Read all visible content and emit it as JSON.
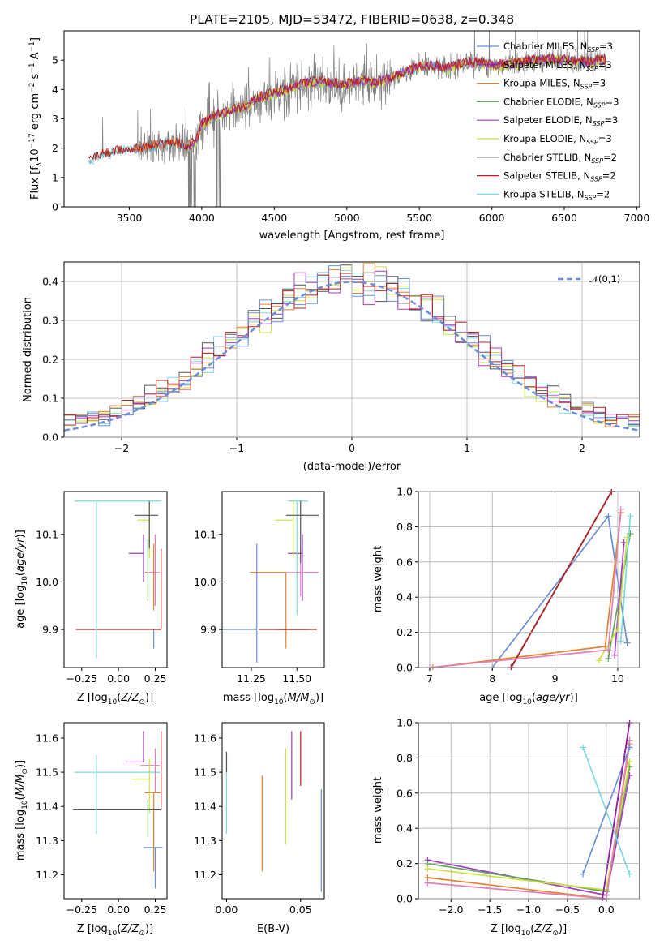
{
  "figure_title": "PLATE=2105, MJD=53472, FIBERID=0638, z=0.348",
  "colors": {
    "Chabrier MILES": "#6b8fd6",
    "Salpeter MILES": "#8b1fa6",
    "Kroupa MILES": "#e5822f",
    "Chabrier ELODIE": "#5ea25e",
    "Salpeter ELODIE": "#a23bc0",
    "Kroupa ELODIE": "#cfe040",
    "Chabrier STELIB": "#555555",
    "Salpeter STELIB": "#b22222",
    "Kroupa STELIB": "#7fd9e0",
    "spectrum": "#808080",
    "pink": "#e07fb8"
  },
  "chart_data": [
    {
      "id": "spectrum",
      "type": "line",
      "xlabel": "wavelength [Angstrom, rest frame]",
      "ylabel": "Flux [f_λ 10^-17 erg cm^-2 s^-1 A^-1]",
      "xlim": [
        3050,
        7020
      ],
      "ylim": [
        0,
        6
      ],
      "xticks": [
        3500,
        4000,
        4500,
        5000,
        5500,
        6000,
        6500,
        7000
      ],
      "yticks": [
        0,
        1,
        2,
        3,
        4,
        5
      ],
      "legend_position": "upper-right",
      "legend": [
        "Chabrier MILES, N_SSP=3",
        "Salpeter MILES, N_SSP=3",
        "Kroupa MILES, N_SSP=3",
        "Chabrier ELODIE, N_SSP=3",
        "Salpeter ELODIE, N_SSP=3",
        "Kroupa ELODIE, N_SSP=3",
        "Chabrier STELIB, N_SSP=2",
        "Salpeter STELIB, N_SSP=2",
        "Kroupa STELIB, N_SSP=2"
      ],
      "continuum_points": [
        [
          3220,
          1.55
        ],
        [
          3300,
          1.75
        ],
        [
          3400,
          1.85
        ],
        [
          3500,
          1.95
        ],
        [
          3600,
          2.0
        ],
        [
          3700,
          2.1
        ],
        [
          3800,
          2.2
        ],
        [
          3900,
          2.05
        ],
        [
          3960,
          2.2
        ],
        [
          4000,
          2.8
        ],
        [
          4100,
          3.1
        ],
        [
          4200,
          3.3
        ],
        [
          4300,
          3.4
        ],
        [
          4400,
          3.7
        ],
        [
          4500,
          3.85
        ],
        [
          4600,
          4.0
        ],
        [
          4700,
          4.2
        ],
        [
          4800,
          4.25
        ],
        [
          4900,
          4.2
        ],
        [
          5000,
          4.15
        ],
        [
          5100,
          4.3
        ],
        [
          5200,
          4.2
        ],
        [
          5300,
          4.35
        ],
        [
          5400,
          4.6
        ],
        [
          5500,
          4.75
        ],
        [
          5600,
          4.8
        ],
        [
          5700,
          4.7
        ],
        [
          5800,
          4.9
        ],
        [
          5900,
          4.9
        ],
        [
          6000,
          4.8
        ],
        [
          6100,
          4.85
        ],
        [
          6200,
          4.9
        ],
        [
          6300,
          5.0
        ],
        [
          6400,
          5.0
        ],
        [
          6500,
          5.0
        ],
        [
          6600,
          4.9
        ],
        [
          6700,
          4.95
        ],
        [
          6790,
          5.0
        ]
      ]
    },
    {
      "id": "residuals",
      "type": "histogram",
      "xlabel": "(data-model)/error",
      "ylabel": "Normed distribution",
      "xlim": [
        -2.5,
        2.5
      ],
      "ylim": [
        0,
        0.45
      ],
      "xticks": [
        -2,
        -1,
        0,
        1,
        2
      ],
      "yticks": [
        0.0,
        0.1,
        0.2,
        0.3,
        0.4
      ],
      "grid": true,
      "legend_position": "upper-right",
      "legend": [
        "𝒩(0,1)"
      ],
      "reference_curve": "normal(0,1)",
      "bin_width": 0.1
    },
    {
      "id": "age_vs_Z",
      "type": "errorbar",
      "xlabel": "Z [log10(Z/Z⊙)]",
      "ylabel": "age [log10(age/yr)]",
      "xlim": [
        -0.37,
        0.33
      ],
      "ylim": [
        9.82,
        10.19
      ],
      "xticks": [
        -0.25,
        0.0,
        0.25
      ],
      "yticks": [
        9.9,
        10.0,
        10.1
      ],
      "points": [
        {
          "model": "Chabrier MILES",
          "x": 0.24,
          "xerr": [
            0.0,
            0.0
          ],
          "y": 9.9,
          "yerr": [
            0.04,
            0.0
          ]
        },
        {
          "model": "Kroupa MILES",
          "x": 0.24,
          "xerr": [
            0.06,
            0.02
          ],
          "y": 10.02,
          "yerr": [
            0.08,
            0.06
          ]
        },
        {
          "model": "Chabrier ELODIE",
          "x": 0.2,
          "xerr": [
            0.0,
            0.0
          ],
          "y": 10.03,
          "yerr": [
            0.07,
            0.06
          ]
        },
        {
          "model": "Salpeter ELODIE",
          "x": 0.17,
          "xerr": [
            0.1,
            0.0
          ],
          "y": 10.06,
          "yerr": [
            0.06,
            0.04
          ]
        },
        {
          "model": "Kroupa ELODIE",
          "x": 0.21,
          "xerr": [
            0.08,
            0.0
          ],
          "y": 10.13,
          "yerr": [
            0.08,
            0.04
          ]
        },
        {
          "model": "Chabrier STELIB",
          "x": 0.21,
          "xerr": [
            0.1,
            0.06
          ],
          "y": 10.14,
          "yerr": [
            0.07,
            0.03
          ]
        },
        {
          "model": "Salpeter STELIB",
          "x": 0.29,
          "xerr": [
            0.58,
            0.0
          ],
          "y": 9.9,
          "yerr": [
            0.0,
            0.17
          ]
        },
        {
          "model": "Kroupa STELIB",
          "x": -0.15,
          "xerr": [
            0.15,
            0.44
          ],
          "y": 10.17,
          "yerr": [
            0.33,
            0.0
          ]
        },
        {
          "model": "pink",
          "x": 0.25,
          "xerr": [
            0.06,
            0.03
          ],
          "y": 10.02,
          "yerr": [
            0.07,
            0.08
          ]
        }
      ]
    },
    {
      "id": "age_vs_mass",
      "type": "errorbar",
      "xlabel": "mass [log10(M/M⊙)]",
      "ylabel": "",
      "xlim": [
        11.09,
        11.65
      ],
      "ylim": [
        9.82,
        10.19
      ],
      "xticks": [
        11.25,
        11.5
      ],
      "yticks": [
        9.9,
        10.0,
        10.1
      ],
      "points": [
        {
          "model": "Chabrier MILES",
          "x": 11.28,
          "xerr": [
            0.2,
            0.0
          ],
          "y": 9.9,
          "yerr": [
            0.07,
            0.18
          ]
        },
        {
          "model": "Kroupa MILES",
          "x": 11.44,
          "xerr": [
            0.2,
            0.0
          ],
          "y": 10.02,
          "yerr": [
            0.16,
            0.0
          ]
        },
        {
          "model": "Salpeter ELODIE",
          "x": 11.53,
          "xerr": [
            0.08,
            0.0
          ],
          "y": 10.06,
          "yerr": [
            0.1,
            0.04
          ]
        },
        {
          "model": "Kroupa ELODIE",
          "x": 11.48,
          "xerr": [
            0.1,
            0.0
          ],
          "y": 10.13,
          "yerr": [
            0.08,
            0.04
          ]
        },
        {
          "model": "Chabrier STELIB",
          "x": 11.39,
          "xerr": [
            0.0,
            0.18
          ],
          "y": 9.9,
          "yerr": [
            0.0,
            0.0
          ]
        },
        {
          "model": "Salpeter STELIB",
          "x": 11.39,
          "xerr": [
            0.1,
            0.22
          ],
          "y": 9.9,
          "yerr": [
            0.0,
            0.0
          ]
        },
        {
          "model": "Kroupa STELIB",
          "x": 11.5,
          "xerr": [
            0.05,
            0.06
          ],
          "y": 10.17,
          "yerr": [
            0.24,
            0.0
          ]
        },
        {
          "model": "pink",
          "x": 11.52,
          "xerr": [
            0.08,
            0.1
          ],
          "y": 10.02,
          "yerr": [
            0.05,
            0.05
          ]
        },
        {
          "model": "Chabrier STELIB",
          "x": 11.52,
          "xerr": [
            0.08,
            0.1
          ],
          "y": 10.14,
          "yerr": [
            0.1,
            0.03
          ]
        }
      ]
    },
    {
      "id": "massweight_vs_age",
      "type": "line",
      "xlabel": "age [log10(age/yr)]",
      "ylabel": "mass weight",
      "xlim": [
        6.82,
        10.35
      ],
      "ylim": [
        0,
        1
      ],
      "xticks": [
        7,
        8,
        9,
        10
      ],
      "yticks": [
        0.0,
        0.2,
        0.4,
        0.6,
        0.8,
        1.0
      ],
      "grid": true,
      "series": [
        {
          "model": "Chabrier MILES",
          "points": [
            [
              8.0,
              0.0
            ],
            [
              9.85,
              0.86
            ],
            [
              10.15,
              0.14
            ]
          ]
        },
        {
          "model": "Salpeter MILES",
          "points": [
            [
              8.3,
              0.0
            ],
            [
              9.9,
              1.0
            ]
          ]
        },
        {
          "model": "Kroupa MILES",
          "points": [
            [
              7.05,
              0.0
            ],
            [
              9.8,
              0.12
            ],
            [
              10.05,
              0.88
            ]
          ]
        },
        {
          "model": "Chabrier ELODIE",
          "points": [
            [
              9.85,
              0.05
            ],
            [
              10.2,
              0.76
            ]
          ]
        },
        {
          "model": "Salpeter ELODIE",
          "points": [
            [
              9.95,
              0.07
            ],
            [
              10.1,
              0.71
            ]
          ]
        },
        {
          "model": "Kroupa ELODIE",
          "points": [
            [
              9.7,
              0.04
            ],
            [
              10.0,
              0.22
            ],
            [
              10.15,
              0.74
            ]
          ]
        },
        {
          "model": "Chabrier STELIB",
          "points": [
            [
              8.3,
              0.0
            ],
            [
              9.9,
              1.0
            ]
          ]
        },
        {
          "model": "Salpeter STELIB",
          "points": [
            [
              8.3,
              0.0
            ],
            [
              9.9,
              1.0
            ]
          ]
        },
        {
          "model": "Kroupa STELIB",
          "points": [
            [
              10.05,
              0.15
            ],
            [
              10.2,
              0.86
            ]
          ]
        },
        {
          "model": "pink",
          "points": [
            [
              7.0,
              0.0
            ],
            [
              9.85,
              0.1
            ],
            [
              10.05,
              0.9
            ]
          ]
        }
      ]
    },
    {
      "id": "mass_vs_Z",
      "type": "errorbar",
      "xlabel": "Z [log10(Z/Z⊙)]",
      "ylabel": "mass [log10(M/M⊙)]",
      "xlim": [
        -0.37,
        0.33
      ],
      "ylim": [
        11.13,
        11.645
      ],
      "xticks": [
        -0.25,
        0.0,
        0.25
      ],
      "yticks": [
        11.2,
        11.3,
        11.4,
        11.5,
        11.6
      ],
      "points": [
        {
          "model": "Chabrier MILES",
          "x": 0.25,
          "xerr": [
            0.08,
            0.05
          ],
          "y": 11.28,
          "yerr": [
            0.12,
            0.0
          ]
        },
        {
          "model": "Kroupa MILES",
          "x": 0.24,
          "xerr": [
            0.06,
            0.05
          ],
          "y": 11.44,
          "yerr": [
            0.23,
            0.0
          ]
        },
        {
          "model": "Chabrier ELODIE",
          "x": 0.2,
          "xerr": [
            0.0,
            0.0
          ],
          "y": 11.42,
          "yerr": [
            0.11,
            0.0
          ]
        },
        {
          "model": "Salpeter ELODIE",
          "x": 0.17,
          "xerr": [
            0.12,
            0.0
          ],
          "y": 11.53,
          "yerr": [
            0.0,
            0.09
          ]
        },
        {
          "model": "Kroupa ELODIE",
          "x": 0.21,
          "xerr": [
            0.12,
            0.0
          ],
          "y": 11.48,
          "yerr": [
            0.1,
            0.06
          ]
        },
        {
          "model": "Chabrier STELIB",
          "x": 0.29,
          "xerr": [
            0.6,
            0.0
          ],
          "y": 11.39,
          "yerr": [
            0.0,
            0.0
          ]
        },
        {
          "model": "Salpeter STELIB",
          "x": 0.29,
          "xerr": [
            0.0,
            0.0
          ],
          "y": 11.49,
          "yerr": [
            0.1,
            0.13
          ]
        },
        {
          "model": "Kroupa STELIB",
          "x": -0.15,
          "xerr": [
            0.15,
            0.45
          ],
          "y": 11.5,
          "yerr": [
            0.18,
            0.05
          ]
        },
        {
          "model": "pink",
          "x": 0.25,
          "xerr": [
            0.1,
            0.03
          ],
          "y": 11.52,
          "yerr": [
            0.08,
            0.05
          ]
        }
      ]
    },
    {
      "id": "mass_vs_EBV",
      "type": "errorbar",
      "xlabel": "E(B-V)",
      "ylabel": "",
      "xlim": [
        -0.003,
        0.066
      ],
      "ylim": [
        11.13,
        11.645
      ],
      "xticks": [
        0.0,
        0.05
      ],
      "yticks": [
        11.2,
        11.3,
        11.4,
        11.5,
        11.6
      ],
      "points": [
        {
          "model": "Kroupa STELIB",
          "x": 0.0,
          "y": 11.5,
          "yerr": [
            0.18,
            0.06
          ]
        },
        {
          "model": "Chabrier STELIB",
          "x": 0.0,
          "y": 11.5,
          "yerr": [
            0.0,
            0.06
          ]
        },
        {
          "model": "Kroupa MILES",
          "x": 0.024,
          "y": 11.35,
          "yerr": [
            0.14,
            0.14
          ]
        },
        {
          "model": "Kroupa ELODIE",
          "x": 0.04,
          "y": 11.43,
          "yerr": [
            0.14,
            0.14
          ]
        },
        {
          "model": "Salpeter ELODIE",
          "x": 0.044,
          "y": 11.52,
          "yerr": [
            0.1,
            0.1
          ]
        },
        {
          "model": "Salpeter STELIB",
          "x": 0.05,
          "y": 11.54,
          "yerr": [
            0.08,
            0.08
          ]
        },
        {
          "model": "Chabrier MILES",
          "x": 0.064,
          "y": 11.3,
          "yerr": [
            0.15,
            0.15
          ]
        }
      ]
    },
    {
      "id": "massweight_vs_Z",
      "type": "line",
      "xlabel": "Z [log10(Z/Z⊙)]",
      "ylabel": "mass weight",
      "xlim": [
        -2.42,
        0.43
      ],
      "ylim": [
        0,
        1
      ],
      "xticks": [
        -2.0,
        -1.5,
        -1.0,
        -0.5,
        0.0
      ],
      "yticks": [
        0.0,
        0.2,
        0.4,
        0.6,
        0.8,
        1.0
      ],
      "grid": true,
      "series": [
        {
          "model": "Salpeter ELODIE",
          "points": [
            [
              -2.3,
              0.22
            ],
            [
              0.0,
              0.02
            ],
            [
              0.3,
              0.7
            ]
          ]
        },
        {
          "model": "Chabrier ELODIE",
          "points": [
            [
              -2.3,
              0.2
            ],
            [
              0.0,
              0.04
            ],
            [
              0.3,
              0.75
            ]
          ]
        },
        {
          "model": "Kroupa ELODIE",
          "points": [
            [
              -2.3,
              0.17
            ],
            [
              0.0,
              0.05
            ],
            [
              0.3,
              0.78
            ]
          ]
        },
        {
          "model": "Kroupa MILES",
          "points": [
            [
              -2.3,
              0.12
            ],
            [
              0.0,
              0.0
            ],
            [
              0.3,
              0.88
            ]
          ]
        },
        {
          "model": "pink",
          "points": [
            [
              -2.3,
              0.09
            ],
            [
              0.0,
              0.0
            ],
            [
              0.3,
              0.9
            ]
          ]
        },
        {
          "model": "Chabrier MILES",
          "points": [
            [
              -0.3,
              0.14
            ],
            [
              0.3,
              0.86
            ]
          ]
        },
        {
          "model": "Kroupa STELIB",
          "points": [
            [
              -0.3,
              0.86
            ],
            [
              0.3,
              0.14
            ]
          ]
        },
        {
          "model": "Salpeter STELIB",
          "points": [
            [
              -0.05,
              0.0
            ],
            [
              0.3,
              1.0
            ]
          ]
        },
        {
          "model": "Salpeter MILES",
          "points": [
            [
              -0.05,
              0.0
            ],
            [
              0.3,
              1.0
            ]
          ]
        }
      ]
    }
  ]
}
